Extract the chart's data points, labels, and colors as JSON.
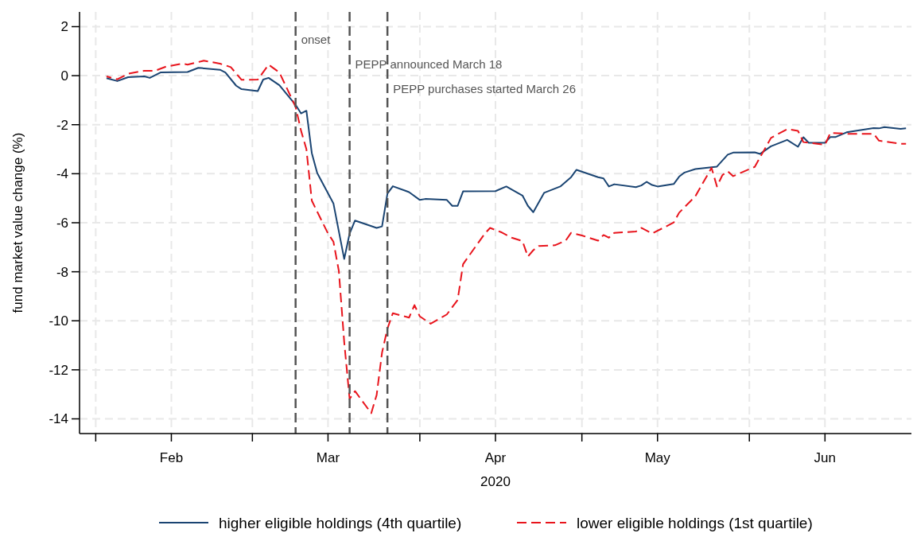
{
  "chart_data": {
    "type": "line",
    "xlabel": "2020",
    "ylabel": "fund market value change (%)",
    "xlim": [
      "2020-01-15",
      "2020-06-17"
    ],
    "ylim": [
      -14.6,
      2.6
    ],
    "xticks": [
      {
        "value": "2020-01-18",
        "label": null
      },
      {
        "value": "2020-02-01",
        "label": "Feb"
      },
      {
        "value": "2020-02-16",
        "label": null
      },
      {
        "value": "2020-03-01",
        "label": "Mar"
      },
      {
        "value": "2020-03-18",
        "label": null
      },
      {
        "value": "2020-04-01",
        "label": "Apr"
      },
      {
        "value": "2020-04-17",
        "label": null
      },
      {
        "value": "2020-05-01",
        "label": "May"
      },
      {
        "value": "2020-05-18",
        "label": null
      },
      {
        "value": "2020-06-01",
        "label": "Jun"
      }
    ],
    "yticks": [
      2,
      0,
      -2,
      -4,
      -6,
      -8,
      -10,
      -12,
      -14
    ],
    "grid": true,
    "legend": "bottom",
    "ref_lines": [
      {
        "axis": "x",
        "value": "2020-02-24",
        "label": "onset",
        "color": "#555555",
        "line_style": "dashed"
      },
      {
        "axis": "x",
        "value": "2020-03-05",
        "label": "PEPP announced March 18",
        "color": "#555555",
        "line_style": "dashed"
      },
      {
        "axis": "x",
        "value": "2020-03-12",
        "label": "PEPP purchases started March 26",
        "color": "#555555",
        "line_style": "dashed"
      }
    ],
    "series": [
      {
        "name": "higher eligible holdings (4th quartile)",
        "color": "#1a4472",
        "line_style": "solid",
        "x": [
          "2020-01-20",
          "2020-01-22",
          "2020-01-24",
          "2020-01-27",
          "2020-01-28",
          "2020-01-30",
          "2020-02-04",
          "2020-02-06",
          "2020-02-10",
          "2020-02-11",
          "2020-02-13",
          "2020-02-14",
          "2020-02-17",
          "2020-02-18",
          "2020-02-19",
          "2020-02-21",
          "2020-02-24",
          "2020-02-25",
          "2020-02-26",
          "2020-02-27",
          "2020-02-28",
          "2020-03-02",
          "2020-03-04",
          "2020-03-05",
          "2020-03-06",
          "2020-03-10",
          "2020-03-11",
          "2020-03-12",
          "2020-03-13",
          "2020-03-16",
          "2020-03-18",
          "2020-03-19",
          "2020-03-23",
          "2020-03-24",
          "2020-03-25",
          "2020-03-26",
          "2020-04-01",
          "2020-04-03",
          "2020-04-06",
          "2020-04-07",
          "2020-04-08",
          "2020-04-10",
          "2020-04-13",
          "2020-04-15",
          "2020-04-16",
          "2020-04-20",
          "2020-04-21",
          "2020-04-22",
          "2020-04-23",
          "2020-04-27",
          "2020-04-28",
          "2020-04-29",
          "2020-04-30",
          "2020-05-01",
          "2020-05-04",
          "2020-05-05",
          "2020-05-06",
          "2020-05-08",
          "2020-05-12",
          "2020-05-14",
          "2020-05-15",
          "2020-05-19",
          "2020-05-20",
          "2020-05-22",
          "2020-05-25",
          "2020-05-27",
          "2020-05-28",
          "2020-05-29",
          "2020-06-01",
          "2020-06-02",
          "2020-06-03",
          "2020-06-05",
          "2020-06-10",
          "2020-06-11",
          "2020-06-12",
          "2020-06-15",
          "2020-06-16"
        ],
        "values": [
          -0.1,
          -0.22,
          -0.06,
          -0.03,
          -0.09,
          0.13,
          0.15,
          0.32,
          0.24,
          0.13,
          -0.41,
          -0.55,
          -0.63,
          -0.16,
          -0.09,
          -0.39,
          -1.19,
          -1.54,
          -1.43,
          -3.16,
          -3.97,
          -5.21,
          -7.48,
          -6.44,
          -5.91,
          -6.21,
          -6.15,
          -4.81,
          -4.51,
          -4.75,
          -5.07,
          -5.03,
          -5.07,
          -5.31,
          -5.31,
          -4.72,
          -4.71,
          -4.52,
          -4.89,
          -5.31,
          -5.57,
          -4.78,
          -4.52,
          -4.14,
          -3.84,
          -4.14,
          -4.19,
          -4.52,
          -4.43,
          -4.55,
          -4.48,
          -4.33,
          -4.46,
          -4.52,
          -4.42,
          -4.12,
          -3.95,
          -3.81,
          -3.71,
          -3.22,
          -3.14,
          -3.13,
          -3.19,
          -2.88,
          -2.62,
          -2.9,
          -2.51,
          -2.74,
          -2.74,
          -2.5,
          -2.5,
          -2.31,
          -2.14,
          -2.15,
          -2.1,
          -2.17,
          -2.15
        ]
      },
      {
        "name": "lower eligible holdings (1st quartile)",
        "color": "#e8141c",
        "line_style": "dashed",
        "x": [
          "2020-01-20",
          "2020-01-22",
          "2020-01-24",
          "2020-01-27",
          "2020-01-29",
          "2020-01-31",
          "2020-02-03",
          "2020-02-04",
          "2020-02-07",
          "2020-02-10",
          "2020-02-12",
          "2020-02-14",
          "2020-02-17",
          "2020-02-19",
          "2020-02-21",
          "2020-02-24",
          "2020-02-25",
          "2020-02-26",
          "2020-02-27",
          "2020-03-01",
          "2020-03-02",
          "2020-03-03",
          "2020-03-04",
          "2020-03-05",
          "2020-03-06",
          "2020-03-09",
          "2020-03-10",
          "2020-03-11",
          "2020-03-12",
          "2020-03-13",
          "2020-03-16",
          "2020-03-17",
          "2020-03-18",
          "2020-03-20",
          "2020-03-23",
          "2020-03-25",
          "2020-03-26",
          "2020-03-30",
          "2020-03-31",
          "2020-04-02",
          "2020-04-04",
          "2020-04-06",
          "2020-04-07",
          "2020-04-08",
          "2020-04-09",
          "2020-04-12",
          "2020-04-14",
          "2020-04-15",
          "2020-04-17",
          "2020-04-20",
          "2020-04-21",
          "2020-04-22",
          "2020-04-23",
          "2020-04-27",
          "2020-04-28",
          "2020-04-30",
          "2020-05-04",
          "2020-05-05",
          "2020-05-08",
          "2020-05-11",
          "2020-05-12",
          "2020-05-13",
          "2020-05-14",
          "2020-05-15",
          "2020-05-19",
          "2020-05-22",
          "2020-05-25",
          "2020-05-27",
          "2020-05-28",
          "2020-06-01",
          "2020-06-02",
          "2020-06-05",
          "2020-06-10",
          "2020-06-11",
          "2020-06-15",
          "2020-06-16"
        ],
        "values": [
          -0.03,
          -0.15,
          0.08,
          0.2,
          0.2,
          0.37,
          0.49,
          0.45,
          0.61,
          0.49,
          0.35,
          -0.17,
          -0.16,
          0.45,
          0.13,
          -1.27,
          -2.24,
          -3.0,
          -5.1,
          -6.44,
          -6.77,
          -7.96,
          -10.87,
          -13.19,
          -12.87,
          -13.77,
          -13.03,
          -11.3,
          -10.32,
          -9.69,
          -9.87,
          -9.36,
          -9.82,
          -10.12,
          -9.74,
          -9.15,
          -7.69,
          -6.45,
          -6.21,
          -6.38,
          -6.61,
          -6.75,
          -7.38,
          -7.12,
          -6.95,
          -6.92,
          -6.73,
          -6.41,
          -6.52,
          -6.73,
          -6.5,
          -6.61,
          -6.41,
          -6.36,
          -6.21,
          -6.44,
          -5.99,
          -5.59,
          -4.92,
          -3.76,
          -4.52,
          -4.06,
          -3.9,
          -4.1,
          -3.72,
          -2.54,
          -2.18,
          -2.25,
          -2.71,
          -2.82,
          -2.33,
          -2.37,
          -2.37,
          -2.65,
          -2.78,
          -2.78
        ]
      }
    ]
  }
}
